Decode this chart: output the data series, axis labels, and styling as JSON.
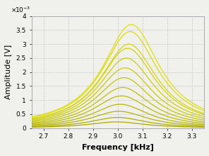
{
  "title": "",
  "xlabel": "Frequency [kHz]",
  "ylabel": "Amplitude [V]",
  "xlim": [
    2.65,
    3.35
  ],
  "ylim": [
    0,
    0.004
  ],
  "yticks": [
    0,
    0.0005,
    0.001,
    0.0015,
    0.002,
    0.0025,
    0.003,
    0.0035,
    0.004
  ],
  "ytick_labels": [
    "0",
    "0.5",
    "1",
    "1.5",
    "2",
    "2.5",
    "3",
    "3.5",
    "4"
  ],
  "xticks": [
    2.7,
    2.8,
    2.9,
    3.0,
    3.1,
    3.2,
    3.3
  ],
  "num_curves": 13,
  "center_freqs": [
    2.995,
    3.0,
    3.005,
    3.01,
    3.015,
    3.02,
    3.025,
    3.03,
    3.035,
    3.04,
    3.045,
    3.05,
    3.055
  ],
  "peak_amplitudes": [
    0.00022,
    0.00038,
    0.0006,
    0.00085,
    0.00115,
    0.00145,
    0.0018,
    0.00215,
    0.0025,
    0.00285,
    0.003,
    0.00345,
    0.0037
  ],
  "widths": [
    0.28,
    0.28,
    0.28,
    0.28,
    0.28,
    0.28,
    0.28,
    0.28,
    0.28,
    0.28,
    0.28,
    0.28,
    0.28
  ],
  "background_color": "#f0f0ec",
  "grid_color": "#c8c8c8"
}
